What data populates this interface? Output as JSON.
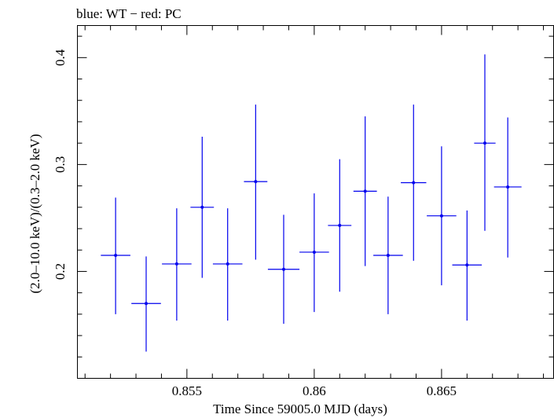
{
  "chart_data": {
    "type": "scatter",
    "title": "blue: WT − red: PC",
    "xlabel": "Time Since 59005.0 MJD (days)",
    "ylabel": "(2.0–10.0 keV)/(0.3–2.0 keV)",
    "xlim": [
      0.8507,
      0.8694
    ],
    "ylim": [
      0.1,
      0.43
    ],
    "xticks": [
      0.855,
      0.86,
      0.865
    ],
    "xtick_labels": [
      "0.855",
      "0.86",
      "0.865"
    ],
    "yticks": [
      0.2,
      0.3,
      0.4
    ],
    "ytick_labels": [
      "0.2",
      "0.3",
      "0.4"
    ],
    "grid": false,
    "series": [
      {
        "name": "WT",
        "color": "#0000ee",
        "points": [
          {
            "x": 0.8522,
            "xerr": 0.00058,
            "y": 0.215,
            "yerr_lo": 0.055,
            "yerr_hi": 0.054
          },
          {
            "x": 0.8534,
            "xerr": 0.00058,
            "y": 0.17,
            "yerr_lo": 0.045,
            "yerr_hi": 0.044
          },
          {
            "x": 0.8546,
            "xerr": 0.00058,
            "y": 0.207,
            "yerr_lo": 0.053,
            "yerr_hi": 0.052
          },
          {
            "x": 0.8556,
            "xerr": 0.00046,
            "y": 0.26,
            "yerr_lo": 0.066,
            "yerr_hi": 0.066
          },
          {
            "x": 0.8566,
            "xerr": 0.00058,
            "y": 0.207,
            "yerr_lo": 0.053,
            "yerr_hi": 0.052
          },
          {
            "x": 0.8577,
            "xerr": 0.00046,
            "y": 0.284,
            "yerr_lo": 0.073,
            "yerr_hi": 0.072
          },
          {
            "x": 0.8588,
            "xerr": 0.00062,
            "y": 0.202,
            "yerr_lo": 0.051,
            "yerr_hi": 0.051
          },
          {
            "x": 0.86,
            "xerr": 0.00058,
            "y": 0.218,
            "yerr_lo": 0.056,
            "yerr_hi": 0.055
          },
          {
            "x": 0.861,
            "xerr": 0.00046,
            "y": 0.243,
            "yerr_lo": 0.062,
            "yerr_hi": 0.062
          },
          {
            "x": 0.862,
            "xerr": 0.00046,
            "y": 0.275,
            "yerr_lo": 0.07,
            "yerr_hi": 0.07
          },
          {
            "x": 0.8629,
            "xerr": 0.00058,
            "y": 0.215,
            "yerr_lo": 0.055,
            "yerr_hi": 0.055
          },
          {
            "x": 0.8639,
            "xerr": 0.0005,
            "y": 0.283,
            "yerr_lo": 0.073,
            "yerr_hi": 0.073
          },
          {
            "x": 0.865,
            "xerr": 0.00058,
            "y": 0.252,
            "yerr_lo": 0.065,
            "yerr_hi": 0.065
          },
          {
            "x": 0.866,
            "xerr": 0.00058,
            "y": 0.206,
            "yerr_lo": 0.052,
            "yerr_hi": 0.051
          },
          {
            "x": 0.8667,
            "xerr": 0.00042,
            "y": 0.32,
            "yerr_lo": 0.082,
            "yerr_hi": 0.083
          },
          {
            "x": 0.8676,
            "xerr": 0.00054,
            "y": 0.279,
            "yerr_lo": 0.066,
            "yerr_hi": 0.065
          }
        ]
      }
    ]
  }
}
